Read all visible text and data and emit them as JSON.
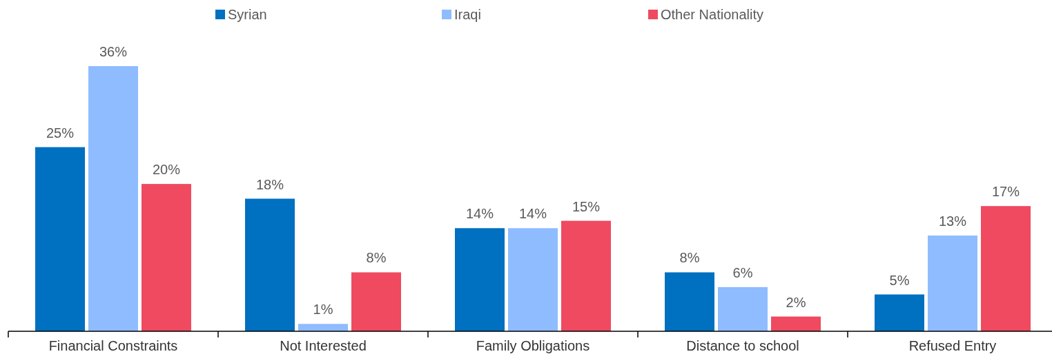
{
  "chart_data": {
    "type": "bar",
    "categories": [
      "Financial Constraints",
      "Not Interested",
      "Family Obligations",
      "Distance to school",
      "Refused Entry"
    ],
    "series": [
      {
        "name": "Syrian",
        "color": "#0070c0",
        "values": [
          25,
          18,
          14,
          8,
          5
        ],
        "value_labels": [
          "25%",
          "18%",
          "14%",
          "8%",
          "5%"
        ]
      },
      {
        "name": "Iraqi",
        "color": "#8fbcff",
        "values": [
          36,
          1,
          14,
          6,
          13
        ],
        "value_labels": [
          "36%",
          "1%",
          "14%",
          "6%",
          "13%"
        ]
      },
      {
        "name": "Other Nationality",
        "color": "#ef4a60",
        "values": [
          20,
          8,
          15,
          2,
          17
        ],
        "value_labels": [
          "20%",
          "8%",
          "15%",
          "2%",
          "17%"
        ]
      }
    ],
    "legend": "top",
    "tick_labels": "x"
  }
}
